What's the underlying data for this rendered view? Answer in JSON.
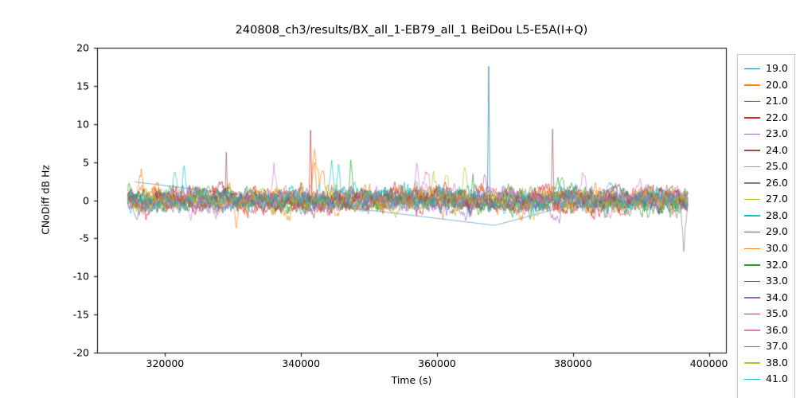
{
  "chart_data": {
    "type": "line",
    "title": "240808_ch3/results/BX_all_1-EB79_all_1 BeiDou L5-E5A(I+Q)",
    "xlabel": "Time (s)",
    "ylabel": "CNoDiff dB Hz",
    "xlim": [
      310000,
      402500
    ],
    "ylim": [
      -20,
      20
    ],
    "xticks": [
      320000,
      340000,
      360000,
      380000,
      400000
    ],
    "xtick_labels": [
      "320000",
      "340000",
      "360000",
      "380000",
      "400000"
    ],
    "yticks": [
      -20,
      -15,
      -10,
      -5,
      0,
      5,
      10,
      15,
      20
    ],
    "ytick_labels": [
      "-20",
      "-15",
      "-10",
      "-5",
      "0",
      "5",
      "10",
      "15",
      "20"
    ],
    "x_range_data": [
      314500,
      396900
    ],
    "x_step": 100,
    "grid": false,
    "legend_position": "right",
    "series": [
      {
        "name": "19.0",
        "color": "#1f77b4",
        "seed": 1,
        "amp": 0,
        "points": [
          [
            315500,
            2.4
          ],
          [
            368500,
            -3.3
          ],
          [
            379000,
            -0.8
          ]
        ]
      },
      {
        "name": "20.0",
        "color": "#ff7f0e",
        "seed": 2,
        "amp": 1.15,
        "spikes": [
          [
            316500,
            2.8,
            600
          ],
          [
            330500,
            -3.8,
            500
          ],
          [
            342000,
            7.5,
            700
          ],
          [
            343200,
            5.0,
            900
          ]
        ]
      },
      {
        "name": "21.0",
        "color": "#2ca02c",
        "seed": 3,
        "amp": 1.1,
        "spikes": [
          [
            314700,
            3.2,
            400
          ],
          [
            347300,
            4.5,
            400
          ]
        ]
      },
      {
        "name": "22.0",
        "color": "#d62728",
        "seed": 4,
        "amp": 1.15,
        "spikes": [
          [
            341400,
            9.0,
            250
          ],
          [
            344000,
            -2.5,
            800
          ]
        ]
      },
      {
        "name": "23.0",
        "color": "#9467bd",
        "seed": 5,
        "amp": 1.0,
        "spikes": [
          [
            367000,
            3.0,
            600
          ]
        ]
      },
      {
        "name": "24.0",
        "color": "#8c564b",
        "seed": 6,
        "amp": 0.9,
        "spikes": [
          [
            329000,
            7.0,
            220
          ],
          [
            377000,
            10.0,
            220
          ]
        ]
      },
      {
        "name": "25.0",
        "color": "#e377c2",
        "seed": 7,
        "amp": 1.05,
        "spikes": [
          [
            336000,
            4.2,
            500
          ],
          [
            358500,
            4.0,
            800
          ],
          [
            381500,
            3.0,
            900
          ]
        ]
      },
      {
        "name": "26.0",
        "color": "#7f7f7f",
        "seed": 8,
        "amp": 0.95,
        "spikes": [
          [
            394500,
            -2.2,
            1500
          ],
          [
            396300,
            -6.5,
            500
          ]
        ]
      },
      {
        "name": "27.0",
        "color": "#bcbd22",
        "seed": 9,
        "amp": 1.0,
        "spikes": [
          [
            340000,
            2.8,
            600
          ],
          [
            361500,
            3.4,
            800
          ],
          [
            364000,
            3.0,
            600
          ]
        ]
      },
      {
        "name": "28.0",
        "color": "#17becf",
        "seed": 10,
        "amp": 1.1,
        "spikes": [
          [
            314900,
            -3.0,
            400
          ],
          [
            321500,
            3.8,
            900
          ],
          [
            322800,
            4.3,
            500
          ],
          [
            344500,
            4.5,
            400
          ]
        ]
      },
      {
        "name": "29.0",
        "color": "#1f77b4",
        "seed": 11,
        "amp": 1.0,
        "spikes": [
          [
            367600,
            17.3,
            200
          ]
        ]
      },
      {
        "name": "30.0",
        "color": "#ff7f0e",
        "seed": 12,
        "amp": 1.05,
        "spikes": [
          [
            341900,
            5.0,
            600
          ]
        ]
      },
      {
        "name": "32.0",
        "color": "#2ca02c",
        "seed": 13,
        "amp": 1.0,
        "spikes": [
          [
            365300,
            4.2,
            400
          ]
        ]
      },
      {
        "name": "33.0",
        "color": "#d62728",
        "seed": 14,
        "amp": 1.05,
        "spikes": [
          [
            387500,
            -3.2,
            900
          ]
        ]
      },
      {
        "name": "34.0",
        "color": "#9467bd",
        "seed": 15,
        "amp": 0.95,
        "spikes": []
      },
      {
        "name": "35.0",
        "color": "#8c564b",
        "seed": 16,
        "amp": 0.9,
        "spikes": []
      },
      {
        "name": "36.0",
        "color": "#e377c2",
        "seed": 17,
        "amp": 1.0,
        "spikes": [
          [
            357000,
            4.2,
            500
          ]
        ]
      },
      {
        "name": "37.0",
        "color": "#7f7f7f",
        "seed": 18,
        "amp": 0.95,
        "spikes": []
      },
      {
        "name": "38.0",
        "color": "#bcbd22",
        "seed": 19,
        "amp": 1.0,
        "spikes": [
          [
            359500,
            3.3,
            600
          ]
        ]
      },
      {
        "name": "41.0",
        "color": "#17becf",
        "seed": 20,
        "amp": 1.0,
        "spikes": [
          [
            345500,
            4.0,
            400
          ]
        ]
      }
    ]
  }
}
